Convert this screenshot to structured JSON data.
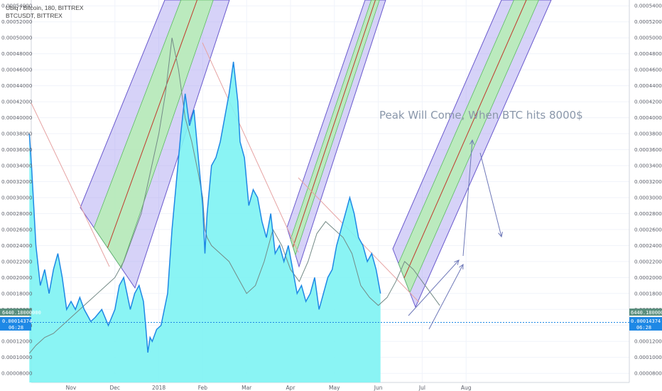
{
  "header": {
    "line1": "Ubiq / Bitcoin, 180, BITTREX",
    "line2": "BTCUSDT, BITTREX"
  },
  "annotation": "Peak Will Come, When BTC hits 8000$",
  "badges": {
    "btc_price": "6440.18000000",
    "ubq_price": "0.00014374",
    "countdown": "06:28"
  },
  "colors": {
    "area_fill": "#7df3f3",
    "price_line": "#1e88e5",
    "btc_line": "#738a86",
    "btc_badge": "#5b8f7e",
    "ubq_badge": "#1e88e5",
    "channel_outer": "#a59cf0",
    "channel_inner": "#b6eeb4",
    "channel_mid": "#c0392b",
    "trendline": "#e6a3a3",
    "arrow": "#6e78b8"
  },
  "chart_data": {
    "type": "line",
    "title": "Ubiq / Bitcoin, 180, BITTREX",
    "ylabel": "",
    "xlabel": "",
    "x_ticks": [
      "Nov",
      "Dec",
      "2018",
      "Feb",
      "Mar",
      "Apr",
      "May",
      "Jun",
      "Jul",
      "Aug"
    ],
    "y_ticks": [
      "0.00054000",
      "0.00052000",
      "0.00050000",
      "0.00048000",
      "0.00046000",
      "0.00044000",
      "0.00042000",
      "0.00040000",
      "0.00038000",
      "0.00036000",
      "0.00034000",
      "0.00032000",
      "0.00030000",
      "0.00028000",
      "0.00026000",
      "0.00024000",
      "0.00022000",
      "0.00020000",
      "0.00018000",
      "0.00016000",
      "0.00014000",
      "0.00012000",
      "0.00010000",
      "0.00008000"
    ],
    "ylim": [
      7.75e-05,
      0.000542
    ],
    "x_range_months": [
      -0.95,
      10.2
    ],
    "series": [
      {
        "name": "Ubiq / Bitcoin",
        "x": [
          -0.95,
          -0.9,
          -0.85,
          -0.8,
          -0.7,
          -0.6,
          -0.5,
          -0.4,
          -0.3,
          -0.2,
          -0.1,
          0.0,
          0.1,
          0.2,
          0.3,
          0.45,
          0.55,
          0.7,
          0.85,
          1.0,
          1.1,
          1.2,
          1.35,
          1.45,
          1.55,
          1.65,
          1.7,
          1.75,
          1.8,
          1.85,
          1.95,
          2.05,
          2.2,
          2.3,
          2.4,
          2.5,
          2.6,
          2.7,
          2.8,
          2.9,
          3.0,
          3.05,
          3.1,
          3.2,
          3.3,
          3.4,
          3.5,
          3.6,
          3.7,
          3.8,
          3.85,
          3.95,
          4.05,
          4.15,
          4.25,
          4.35,
          4.45,
          4.55,
          4.65,
          4.75,
          4.85,
          4.95,
          5.05,
          5.15,
          5.25,
          5.35,
          5.45,
          5.55,
          5.65,
          5.75,
          5.85,
          5.95,
          6.05,
          6.15,
          6.25,
          6.35,
          6.45,
          6.55,
          6.65,
          6.75,
          6.85,
          6.95,
          7.05
        ],
        "values": [
          0.00038,
          0.00034,
          0.00029,
          0.00024,
          0.00019,
          0.00021,
          0.00018,
          0.00021,
          0.00023,
          0.0002,
          0.00016,
          0.00017,
          0.00016,
          0.000175,
          0.00016,
          0.000145,
          0.00015,
          0.00016,
          0.00014,
          0.00016,
          0.00019,
          0.0002,
          0.00016,
          0.00018,
          0.00019,
          0.00017,
          0.00014,
          0.000106,
          0.000125,
          0.00012,
          0.000135,
          0.00014,
          0.00018,
          0.00026,
          0.00032,
          0.00038,
          0.00043,
          0.00039,
          0.00041,
          0.00035,
          0.00029,
          0.00023,
          0.00028,
          0.00034,
          0.00035,
          0.00037,
          0.0004,
          0.00043,
          0.00047,
          0.00042,
          0.00037,
          0.00035,
          0.00029,
          0.00031,
          0.0003,
          0.00027,
          0.00025,
          0.00028,
          0.00023,
          0.00024,
          0.00022,
          0.00024,
          0.00021,
          0.00018,
          0.00019,
          0.00017,
          0.00018,
          0.0002,
          0.00016,
          0.00018,
          0.0002,
          0.00021,
          0.00024,
          0.00026,
          0.00028,
          0.0003,
          0.00028,
          0.00025,
          0.00024,
          0.00022,
          0.00023,
          0.00021,
          0.00018
        ]
      },
      {
        "name": "BTCUSDT",
        "x": [
          -0.95,
          -0.8,
          -0.6,
          -0.4,
          -0.2,
          0.0,
          0.2,
          0.4,
          0.6,
          0.8,
          1.0,
          1.2,
          1.4,
          1.6,
          1.8,
          2.0,
          2.15,
          2.3,
          2.45,
          2.6,
          2.75,
          2.9,
          3.0,
          3.05,
          3.1,
          3.2,
          3.4,
          3.6,
          3.8,
          4.0,
          4.2,
          4.4,
          4.6,
          4.8,
          5.0,
          5.2,
          5.4,
          5.6,
          5.8,
          6.0,
          6.2,
          6.4,
          6.6,
          6.8,
          7.0,
          7.2,
          7.4,
          7.6,
          7.8,
          8.0,
          8.2,
          8.4
        ],
        "values": [
          0.000105,
          0.000115,
          0.000125,
          0.00013,
          0.00014,
          0.00015,
          0.00016,
          0.00017,
          0.00018,
          0.00019,
          0.0002,
          0.00022,
          0.00025,
          0.00028,
          0.00033,
          0.00038,
          0.00043,
          0.0005,
          0.00046,
          0.0004,
          0.00037,
          0.00033,
          0.0003,
          0.00026,
          0.00025,
          0.00024,
          0.00023,
          0.00022,
          0.0002,
          0.00018,
          0.00019,
          0.00022,
          0.00026,
          0.00024,
          0.00021,
          0.000195,
          0.00022,
          0.000255,
          0.00027,
          0.00026,
          0.00025,
          0.00023,
          0.00019,
          0.000175,
          0.000165,
          0.000175,
          0.000195,
          0.00022,
          0.00021,
          0.000195,
          0.00018,
          0.000165
        ]
      }
    ]
  }
}
